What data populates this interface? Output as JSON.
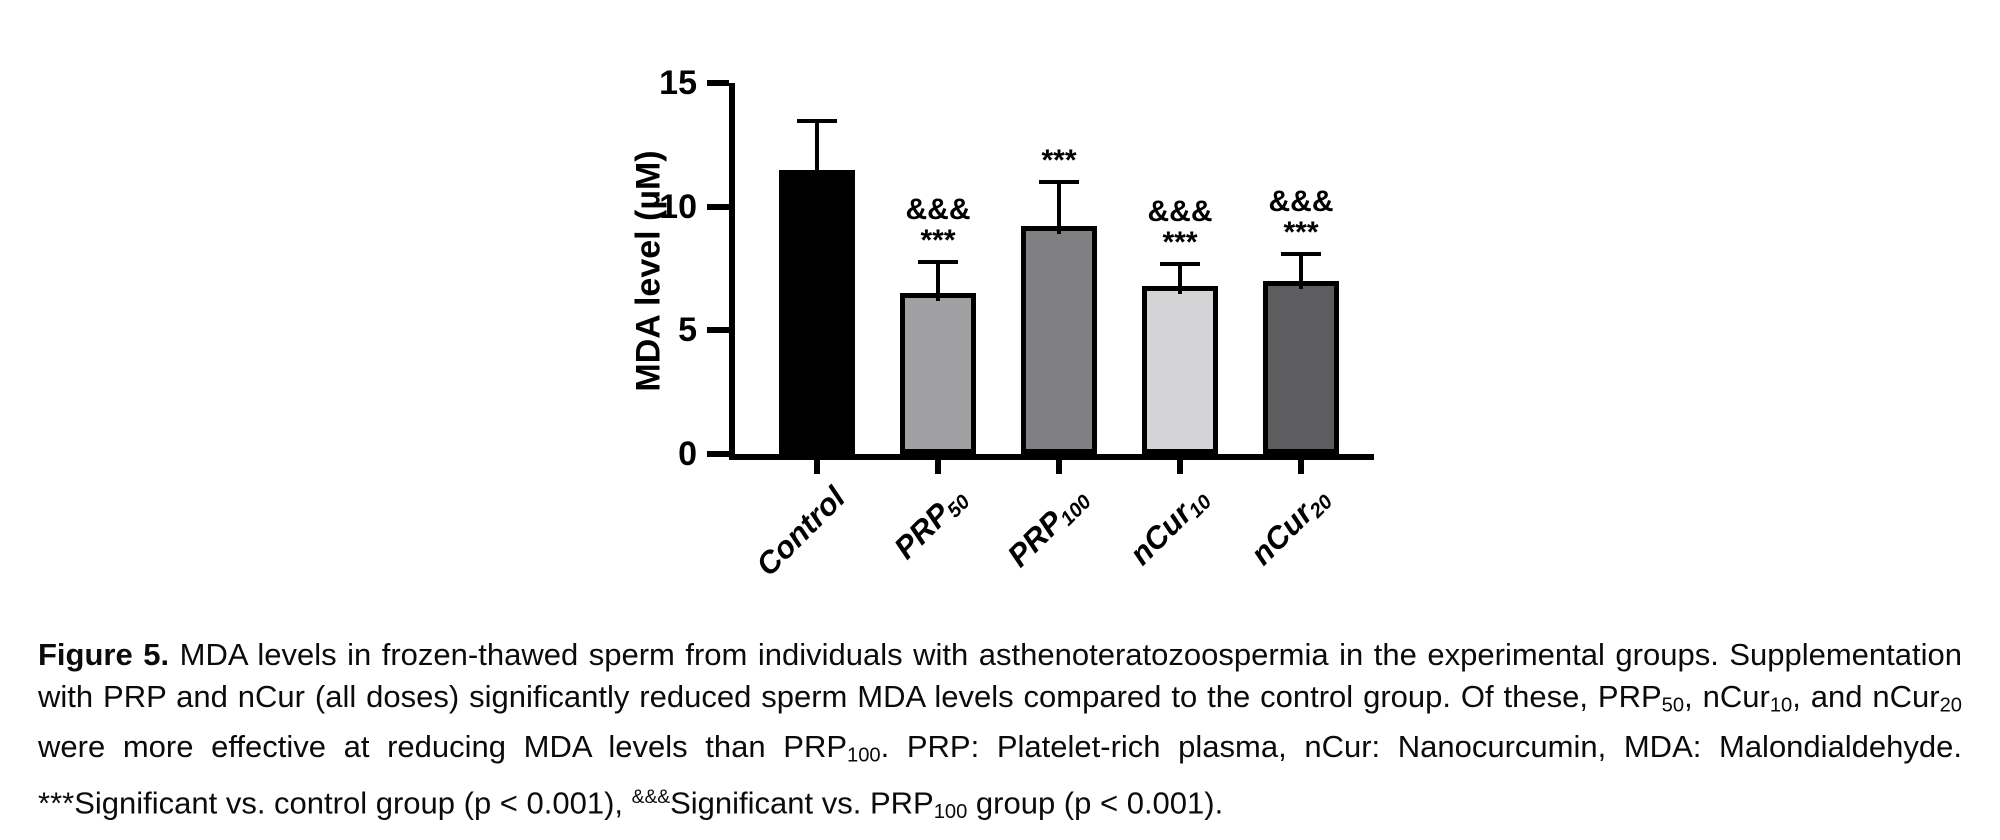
{
  "figure": {
    "caption_segments": [
      {
        "t": "Figure 5.",
        "s": "bold"
      },
      {
        "t": " MDA levels in frozen-thawed sperm from individuals with asthenoteratozoospermia in the experimental groups. Supplementation with PRP and nCur (all doses) significantly reduced sperm MDA levels compared to the control group. Of these, PRP"
      },
      {
        "t": "50",
        "s": "sub"
      },
      {
        "t": ", nCur"
      },
      {
        "t": "10",
        "s": "sub"
      },
      {
        "t": ", and nCur"
      },
      {
        "t": "20",
        "s": "sub"
      },
      {
        "t": " were more effective at reducing MDA levels than PRP"
      },
      {
        "t": "100",
        "s": "sub"
      },
      {
        "t": ". PRP: Platelet-rich plasma, nCur: Nanocurcumin, MDA: Malondialdehyde. ***Significant vs. control group (p < 0.001), "
      },
      {
        "t": "&&&",
        "s": "sup"
      },
      {
        "t": "Significant vs. PRP"
      },
      {
        "t": "100",
        "s": "sub"
      },
      {
        "t": " group (p < 0.001)."
      }
    ]
  },
  "chart_data": {
    "type": "bar",
    "title": "",
    "ylabel": "MDA level (µM)",
    "xlabel": "",
    "ylim": [
      0,
      15
    ],
    "yticks": [
      0,
      5,
      10,
      15
    ],
    "grid": false,
    "legend": "none",
    "error_bars": "sd-upper-only",
    "categories": [
      "Control",
      "PRP50",
      "PRP100",
      "nCur10",
      "nCur20"
    ],
    "category_segments": [
      [
        {
          "t": "Control"
        }
      ],
      [
        {
          "t": "PRP"
        },
        {
          "t": "50",
          "s": "sub"
        }
      ],
      [
        {
          "t": "PRP"
        },
        {
          "t": "100",
          "s": "sub"
        }
      ],
      [
        {
          "t": "nCur"
        },
        {
          "t": "10",
          "s": "sub"
        }
      ],
      [
        {
          "t": "nCur"
        },
        {
          "t": "20",
          "s": "sub"
        }
      ]
    ],
    "values": [
      11.5,
      6.5,
      9.2,
      6.8,
      7.0
    ],
    "errors_up": [
      1.9,
      1.2,
      1.7,
      0.8,
      1.0
    ],
    "annotations": [
      [],
      [
        "&&&",
        "***"
      ],
      [
        "***"
      ],
      [
        "&&&",
        "***"
      ],
      [
        "&&&",
        "***"
      ]
    ],
    "bar_colors": [
      "#000000",
      "#a0a0a3",
      "#808083",
      "#d4d4d6",
      "#5d5d60"
    ],
    "bar_border_color": "#000000",
    "axis_color": "#000000"
  }
}
